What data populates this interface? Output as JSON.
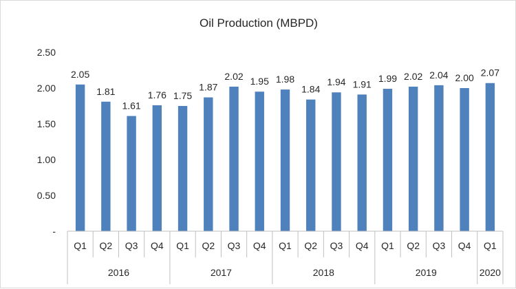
{
  "chart_data": {
    "type": "bar",
    "title": "Oil Production (MBPD)",
    "xlabel": "",
    "ylabel": "",
    "ylim": [
      0,
      2.5
    ],
    "yticks": [
      {
        "value": 0,
        "label": "-"
      },
      {
        "value": 0.5,
        "label": "0.50"
      },
      {
        "value": 1.0,
        "label": "1.00"
      },
      {
        "value": 1.5,
        "label": "1.50"
      },
      {
        "value": 2.0,
        "label": "2.00"
      },
      {
        "value": 2.5,
        "label": "2.50"
      }
    ],
    "grid": false,
    "legend": "none",
    "bar_color": "#4f81bd",
    "groups": [
      {
        "label": "2016",
        "quarters": [
          "Q1",
          "Q2",
          "Q3",
          "Q4"
        ],
        "values": [
          2.05,
          1.81,
          1.61,
          1.76
        ]
      },
      {
        "label": "2017",
        "quarters": [
          "Q1",
          "Q2",
          "Q3",
          "Q4"
        ],
        "values": [
          1.75,
          1.87,
          2.02,
          1.95
        ]
      },
      {
        "label": "2018",
        "quarters": [
          "Q1",
          "Q2",
          "Q3",
          "Q4"
        ],
        "values": [
          1.98,
          1.84,
          1.94,
          1.91
        ]
      },
      {
        "label": "2019",
        "quarters": [
          "Q1",
          "Q2",
          "Q3",
          "Q4"
        ],
        "values": [
          1.99,
          2.02,
          2.04,
          2.0
        ]
      },
      {
        "label": "2020",
        "quarters": [
          "Q1"
        ],
        "values": [
          2.07
        ]
      }
    ],
    "data_labels": [
      "2.05",
      "1.81",
      "1.61",
      "1.76",
      "1.75",
      "1.87",
      "2.02",
      "1.95",
      "1.98",
      "1.84",
      "1.94",
      "1.91",
      "1.99",
      "2.02",
      "2.04",
      "2.00",
      "2.07"
    ]
  }
}
